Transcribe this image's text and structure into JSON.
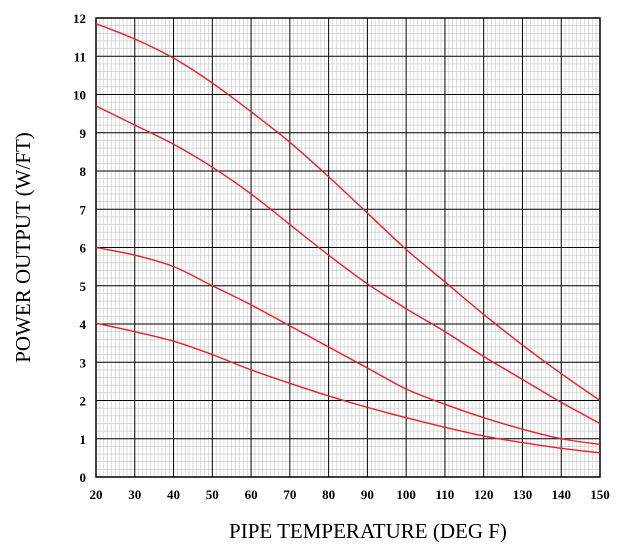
{
  "chart_data": {
    "type": "line",
    "title": "",
    "xlabel": "PIPE TEMPERATURE (DEG F)",
    "ylabel": "POWER OUTPUT (W/FT)",
    "xlim": [
      20,
      150
    ],
    "ylim": [
      0,
      12
    ],
    "x_ticks": [
      "20",
      "30",
      "40",
      "50",
      "60",
      "70",
      "80",
      "90",
      "100",
      "110",
      "120",
      "130",
      "140",
      "150"
    ],
    "y_ticks": [
      "0",
      "1",
      "2",
      "3",
      "4",
      "5",
      "6",
      "7",
      "8",
      "9",
      "10",
      "11",
      "12"
    ],
    "grid": true,
    "line_color": "#e8202a",
    "series": [
      {
        "x": [
          20,
          30,
          40,
          50,
          60,
          70,
          80,
          90,
          100,
          110,
          120,
          130,
          140,
          150
        ],
        "values": [
          11.85,
          11.45,
          10.95,
          10.3,
          9.55,
          8.75,
          7.85,
          6.9,
          5.95,
          5.1,
          4.25,
          3.45,
          2.7,
          2.0
        ]
      },
      {
        "x": [
          20,
          30,
          40,
          50,
          60,
          70,
          80,
          90,
          100,
          110,
          120,
          130,
          140,
          150
        ],
        "values": [
          9.7,
          9.2,
          8.7,
          8.1,
          7.4,
          6.6,
          5.8,
          5.05,
          4.4,
          3.8,
          3.15,
          2.55,
          1.95,
          1.4
        ]
      },
      {
        "x": [
          20,
          30,
          40,
          50,
          60,
          70,
          80,
          90,
          100,
          110,
          120,
          130,
          140,
          150
        ],
        "values": [
          6.0,
          5.8,
          5.5,
          5.0,
          4.5,
          3.95,
          3.4,
          2.85,
          2.3,
          1.9,
          1.55,
          1.25,
          1.0,
          0.85
        ]
      },
      {
        "x": [
          20,
          30,
          40,
          50,
          60,
          70,
          80,
          90,
          100,
          110,
          120,
          130,
          140,
          150
        ],
        "values": [
          4.02,
          3.8,
          3.55,
          3.2,
          2.8,
          2.45,
          2.12,
          1.82,
          1.55,
          1.3,
          1.07,
          0.9,
          0.75,
          0.63
        ]
      }
    ]
  }
}
